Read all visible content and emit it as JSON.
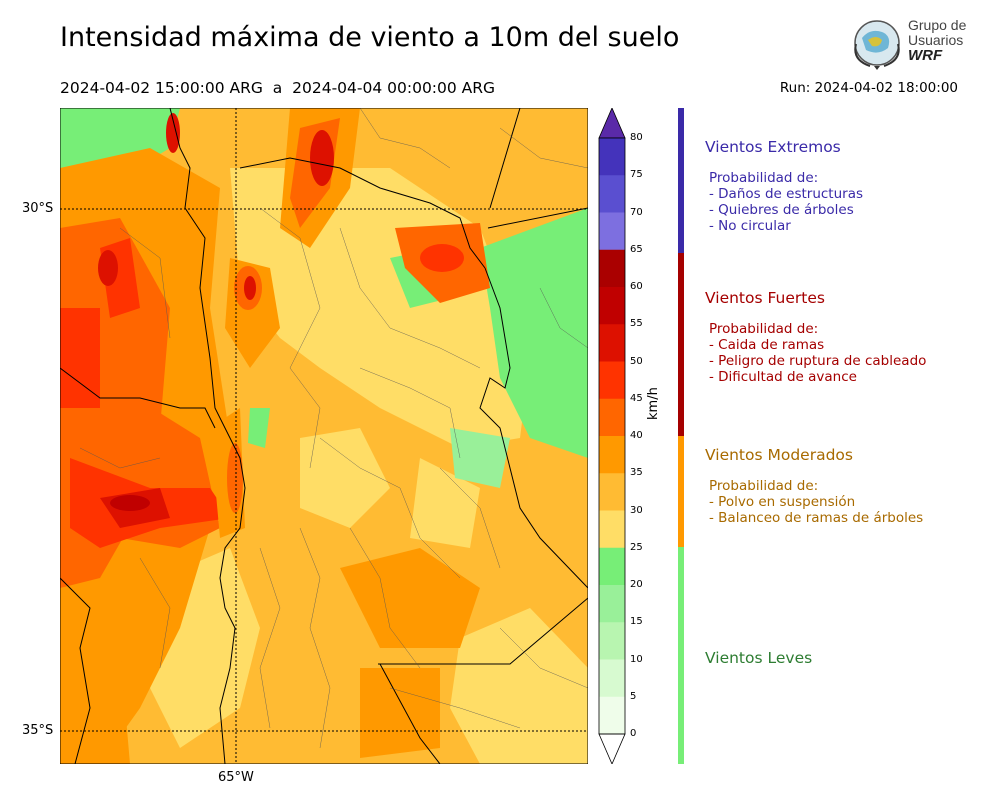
{
  "header": {
    "title": "Intensidad máxima de viento a 10m del suelo",
    "period": "2024-04-02 15:00:00 ARG  a  2024-04-04 00:00:00 ARG",
    "run": "Run: 2024-04-02 18:00:00"
  },
  "logo": {
    "line1": "Grupo de",
    "line2": "Usuarios",
    "line3": "WRF"
  },
  "map": {
    "lat_labels": [
      "30°S",
      "35°S"
    ],
    "lon_labels": [
      "65°W"
    ]
  },
  "colorbar": {
    "unit": "km/h",
    "ticks": [
      "80",
      "75",
      "70",
      "65",
      "60",
      "55",
      "50",
      "45",
      "40",
      "35",
      "30",
      "25",
      "20",
      "15",
      "10",
      "5",
      "0"
    ],
    "colors": [
      "#5a2aa8",
      "#4433bb",
      "#5a4fd0",
      "#7d6fe0",
      "#aa0000",
      "#c00000",
      "#dd1100",
      "#ff3300",
      "#ff6600",
      "#ff9900",
      "#ffbb33",
      "#ffdd66",
      "#77ee77",
      "#99f099",
      "#b8f5b0",
      "#d7fad0",
      "#effdea"
    ]
  },
  "categories": [
    {
      "name": "Vientos Extremos",
      "color": "#3a2aa8",
      "lines": [
        "Probabilidad de:",
        "- Daños de estructuras",
        "- Quiebres de árboles",
        "- No circular"
      ]
    },
    {
      "name": "Vientos Fuertes",
      "color": "#a50000",
      "lines": [
        "Probabilidad de:",
        "- Caida de ramas",
        "- Peligro de ruptura de cableado",
        "- Dificultad de avance"
      ]
    },
    {
      "name": "Vientos Moderados",
      "color": "#a86a00",
      "lines": [
        "Probabilidad de:",
        "- Polvo en suspensión",
        "- Balanceo de ramas de árboles"
      ]
    },
    {
      "name": "Vientos Leves",
      "color": "#2e7d32",
      "lines": []
    }
  ],
  "category_bar_colors": [
    "#3a2aa8",
    "#a50000",
    "#ff9900",
    "#77ee77"
  ]
}
